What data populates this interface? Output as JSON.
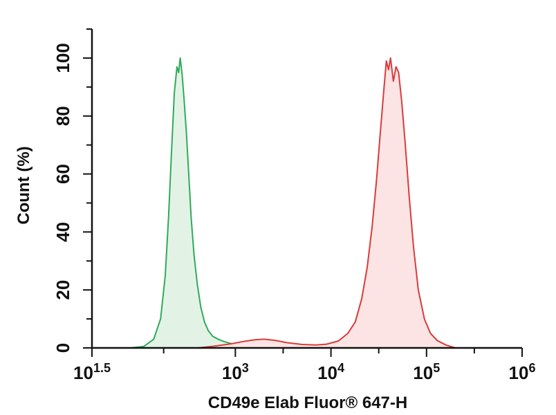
{
  "chart_data": {
    "type": "area",
    "xlabel": "CD49e Elab Fluor® 647-H",
    "ylabel": "Count (%)",
    "x_scale": "log10",
    "xlim": [
      31.6228,
      1000000
    ],
    "ylim": [
      0,
      110
    ],
    "x_ticks": [
      {
        "base": "10",
        "exp": "1.5",
        "value": 31.6228
      },
      {
        "base": "10",
        "exp": "3",
        "value": 1000
      },
      {
        "base": "10",
        "exp": "4",
        "value": 10000
      },
      {
        "base": "10",
        "exp": "5",
        "value": 100000
      },
      {
        "base": "10",
        "exp": "6",
        "value": 1000000
      }
    ],
    "y_ticks": [
      "0",
      "20",
      "40",
      "60",
      "80",
      "100"
    ],
    "grid": false,
    "series": [
      {
        "color": "#2faa5a",
        "fill": "#e2f3e6",
        "points": [
          [
            80,
            0
          ],
          [
            110,
            0.5
          ],
          [
            140,
            3
          ],
          [
            165,
            10
          ],
          [
            185,
            25
          ],
          [
            200,
            45
          ],
          [
            215,
            68
          ],
          [
            230,
            88
          ],
          [
            245,
            97
          ],
          [
            255,
            95
          ],
          [
            265,
            100
          ],
          [
            278,
            94
          ],
          [
            292,
            85
          ],
          [
            308,
            74
          ],
          [
            325,
            60
          ],
          [
            345,
            45
          ],
          [
            370,
            32
          ],
          [
            400,
            22
          ],
          [
            435,
            14
          ],
          [
            475,
            9
          ],
          [
            520,
            6
          ],
          [
            580,
            4
          ],
          [
            660,
            3
          ],
          [
            760,
            2.2
          ],
          [
            880,
            1.6
          ],
          [
            1000,
            1.2
          ],
          [
            1150,
            0.8
          ],
          [
            1400,
            0.4
          ],
          [
            1800,
            0.2
          ],
          [
            2500,
            0
          ]
        ]
      },
      {
        "color": "#d93a3a",
        "fill": "#fde4e4",
        "points": [
          [
            400,
            0
          ],
          [
            600,
            0.6
          ],
          [
            900,
            1.4
          ],
          [
            1200,
            2.2
          ],
          [
            1600,
            2.8
          ],
          [
            2000,
            3.0
          ],
          [
            2600,
            2.6
          ],
          [
            3500,
            1.8
          ],
          [
            5000,
            1.2
          ],
          [
            7000,
            1.0
          ],
          [
            9000,
            1.3
          ],
          [
            12000,
            2.4
          ],
          [
            15000,
            5
          ],
          [
            18000,
            9
          ],
          [
            21000,
            17
          ],
          [
            24000,
            28
          ],
          [
            27000,
            42
          ],
          [
            30000,
            58
          ],
          [
            33000,
            75
          ],
          [
            36000,
            90
          ],
          [
            38000,
            99
          ],
          [
            40000,
            96
          ],
          [
            42000,
            100
          ],
          [
            45000,
            92
          ],
          [
            48000,
            97
          ],
          [
            51000,
            95
          ],
          [
            55000,
            85
          ],
          [
            60000,
            70
          ],
          [
            66000,
            52
          ],
          [
            73000,
            35
          ],
          [
            82000,
            20
          ],
          [
            95000,
            10
          ],
          [
            110000,
            5
          ],
          [
            130000,
            2.5
          ],
          [
            160000,
            1
          ],
          [
            200000,
            0
          ]
        ]
      }
    ]
  }
}
